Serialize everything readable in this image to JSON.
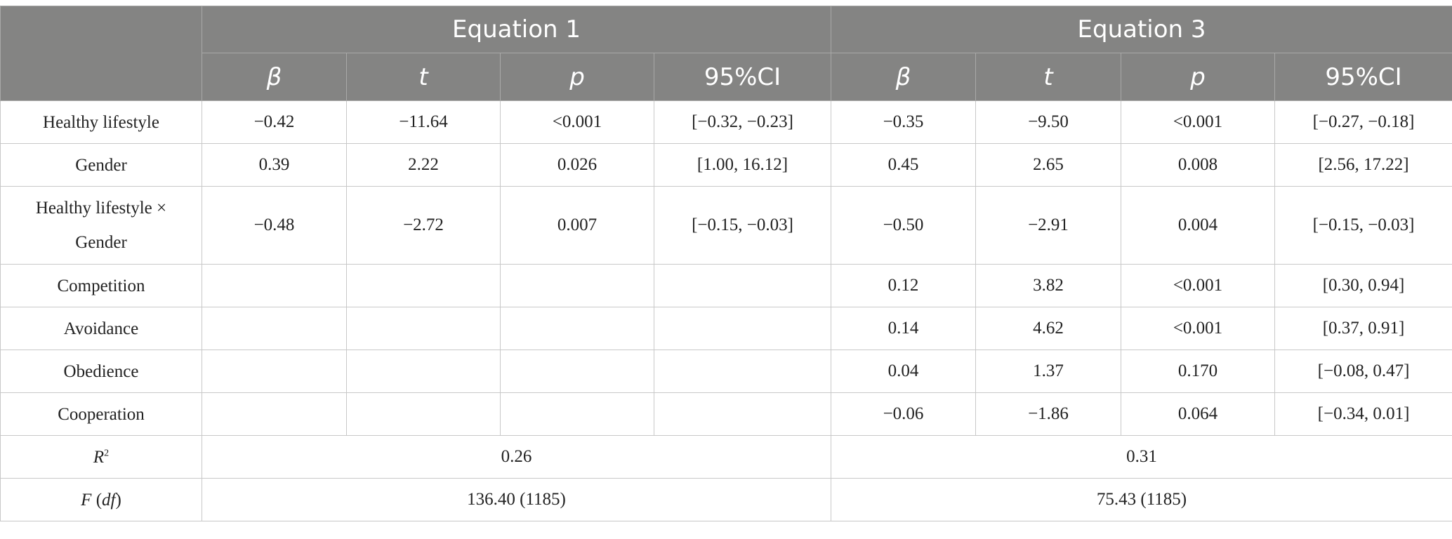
{
  "header": {
    "equation1": "Equation 1",
    "equation3": "Equation 3",
    "beta": "β",
    "t": "t",
    "p": "p",
    "ci": "95%CI"
  },
  "rows": [
    {
      "label": "Healthy lifestyle",
      "eq1": [
        "−0.42",
        "−11.64",
        "<0.001",
        "[−0.32, −0.23]"
      ],
      "eq3": [
        "−0.35",
        "−9.50",
        "<0.001",
        "[−0.27, −0.18]"
      ]
    },
    {
      "label": "Gender",
      "eq1": [
        "0.39",
        "2.22",
        "0.026",
        "[1.00, 16.12]"
      ],
      "eq3": [
        "0.45",
        "2.65",
        "0.008",
        "[2.56, 17.22]"
      ]
    },
    {
      "label_line1": "Healthy lifestyle ×",
      "label_line2": "Gender",
      "eq1": [
        "−0.48",
        "−2.72",
        "0.007",
        "[−0.15, −0.03]"
      ],
      "eq3": [
        "−0.50",
        "−2.91",
        "0.004",
        "[−0.15, −0.03]"
      ]
    },
    {
      "label": "Competition",
      "eq3": [
        "0.12",
        "3.82",
        "<0.001",
        "[0.30, 0.94]"
      ]
    },
    {
      "label": "Avoidance",
      "eq3": [
        "0.14",
        "4.62",
        "<0.001",
        "[0.37, 0.91]"
      ]
    },
    {
      "label": "Obedience",
      "eq3": [
        "0.04",
        "1.37",
        "0.170",
        "[−0.08, 0.47]"
      ]
    },
    {
      "label": "Cooperation",
      "eq3": [
        "−0.06",
        "−1.86",
        "0.064",
        "[−0.34, 0.01]"
      ]
    }
  ],
  "r2": {
    "label": "R",
    "sup": "2",
    "eq1": "0.26",
    "eq3": "0.31"
  },
  "f": {
    "label_f": "F",
    "label_open": " (",
    "label_df": "df",
    "label_close": ")",
    "eq1": "136.40 (1185)",
    "eq3": "75.43 (1185)"
  }
}
